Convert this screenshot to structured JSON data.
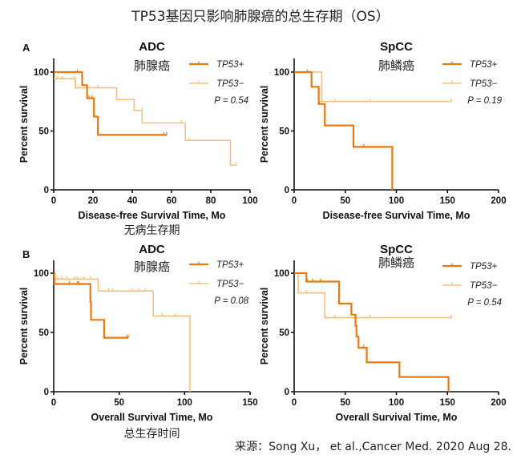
{
  "title": "TP53基因只影响肺腺癌的总生存期（OS）",
  "source": "来源：Song Xu， et al.,Cancer Med. 2020 Aug 28.",
  "colors": {
    "tp53_pos": "#E8790F",
    "tp53_neg": "#F6BE7E"
  },
  "chart_data": [
    {
      "panel": "A",
      "type": "line",
      "step": true,
      "title": "ADC",
      "subtitle": "肺腺癌",
      "xlabel": "Disease-free Survival Time, Mo",
      "xlabel_cn": "无病生存期",
      "ylabel": "Percent survival",
      "xlim": [
        0,
        100
      ],
      "ylim": [
        0,
        100
      ],
      "xticks": [
        0,
        20,
        40,
        60,
        80,
        100
      ],
      "yticks": [
        0,
        50,
        100
      ],
      "legend_position": "top-right",
      "p_value": "P = 0.54",
      "series": [
        {
          "name": "TP53+",
          "steps": [
            [
              0,
              100
            ],
            [
              14.5,
              88.9
            ],
            [
              17,
              77.8
            ],
            [
              20.5,
              62.2
            ],
            [
              22.5,
              46.7
            ]
          ],
          "end": 57.5,
          "censored": [
            [
              12,
              100
            ],
            [
              18,
              77.8
            ],
            [
              19.5,
              77.8
            ],
            [
              56,
              46.7
            ],
            [
              57.5,
              46.7
            ]
          ]
        },
        {
          "name": "TP53−",
          "steps": [
            [
              0,
              94.4
            ],
            [
              11,
              86.7
            ],
            [
              32,
              76.7
            ],
            [
              41,
              67.5
            ],
            [
              45,
              56.8
            ],
            [
              67,
              42
            ],
            [
              90,
              21
            ]
          ],
          "end": 93,
          "censored": [
            [
              2,
              94.4
            ],
            [
              4.5,
              94.4
            ],
            [
              10.5,
              94.4
            ],
            [
              22.5,
              86.7
            ],
            [
              45,
              67.5
            ],
            [
              65,
              56.8
            ],
            [
              69,
              42
            ],
            [
              93,
              21
            ]
          ]
        }
      ]
    },
    {
      "panel": "",
      "type": "line",
      "step": true,
      "title": "SpCC",
      "subtitle": "肺鳞癌",
      "xlabel": "Disease-free Survival Time, Mo",
      "xlabel_cn": "",
      "ylabel": "Percent survival",
      "xlim": [
        0,
        200
      ],
      "ylim": [
        0,
        100
      ],
      "xticks": [
        0,
        50,
        100,
        150,
        200
      ],
      "yticks": [
        0,
        50,
        100
      ],
      "legend_position": "top-right",
      "p_value": "P = 0.19",
      "series": [
        {
          "name": "TP53+",
          "steps": [
            [
              0,
              100
            ],
            [
              17,
              87.5
            ],
            [
              24,
              72.9
            ],
            [
              30,
              54.7
            ],
            [
              58,
              36.5
            ],
            [
              96,
              0
            ]
          ],
          "end": 96,
          "censored": [
            [
              13,
              100
            ],
            [
              17.5,
              87.5
            ],
            [
              25,
              72.9
            ],
            [
              68,
              36.5
            ]
          ]
        },
        {
          "name": "TP53−",
          "steps": [
            [
              0,
              100
            ],
            [
              27,
              75
            ]
          ],
          "end": 154,
          "censored": [
            [
              40,
              75
            ],
            [
              74,
              75
            ],
            [
              154,
              75
            ]
          ]
        }
      ]
    },
    {
      "panel": "B",
      "type": "line",
      "step": true,
      "title": "ADC",
      "subtitle": "肺腺癌",
      "xlabel": "Overall Survival Time, Mo",
      "xlabel_cn": "总生存时间",
      "ylabel": "Percent survival",
      "xlim": [
        0,
        150
      ],
      "ylim": [
        0,
        100
      ],
      "xticks": [
        0,
        50,
        100,
        150
      ],
      "yticks": [
        0,
        50,
        100
      ],
      "legend_position": "top-right",
      "p_value": "P = 0.08",
      "series": [
        {
          "name": "TP53+",
          "steps": [
            [
              0,
              100
            ],
            [
              0.5,
              90.9
            ],
            [
              28,
              75.8
            ],
            [
              28.5,
              60.6
            ],
            [
              38.5,
              45.5
            ]
          ],
          "end": 57,
          "censored": [
            [
              12,
              90.9
            ],
            [
              18,
              90.9
            ],
            [
              19,
              90.9
            ],
            [
              56,
              45.5
            ],
            [
              57,
              45.5
            ]
          ]
        },
        {
          "name": "TP53−",
          "steps": [
            [
              0,
              100
            ],
            [
              0.5,
              95
            ],
            [
              34,
              85
            ],
            [
              76,
              63.8
            ],
            [
              104,
              0
            ]
          ],
          "end": 104,
          "censored": [
            [
              3,
              95
            ],
            [
              6,
              95
            ],
            [
              10,
              95
            ],
            [
              16,
              95
            ],
            [
              18,
              95
            ],
            [
              23,
              95
            ],
            [
              28,
              95
            ],
            [
              42,
              85
            ],
            [
              45,
              85
            ],
            [
              60,
              85
            ],
            [
              65,
              85
            ],
            [
              70,
              85
            ],
            [
              83,
              63.8
            ],
            [
              93,
              63.8
            ]
          ]
        }
      ]
    },
    {
      "panel": "",
      "type": "line",
      "step": true,
      "title": "SpCC",
      "subtitle": "肺鳞癌",
      "xlabel": "Overall Survival Time, Mo",
      "xlabel_cn": "",
      "ylabel": "Percent survival",
      "xlim": [
        0,
        200
      ],
      "ylim": [
        0,
        100
      ],
      "xticks": [
        0,
        50,
        100,
        150,
        200
      ],
      "yticks": [
        0,
        50,
        100
      ],
      "legend_position": "top-right",
      "p_value": "P = 0.54",
      "series": [
        {
          "name": "TP53+",
          "steps": [
            [
              0,
              100
            ],
            [
              12,
              92.9
            ],
            [
              44,
              74.3
            ],
            [
              56,
              65
            ],
            [
              60,
              55.7
            ],
            [
              61,
              46.4
            ],
            [
              63,
              37.1
            ],
            [
              71,
              24.8
            ],
            [
              103,
              12.4
            ],
            [
              151,
              0
            ]
          ],
          "end": 151,
          "censored": [
            [
              13,
              92.9
            ],
            [
              18,
              92.9
            ],
            [
              26,
              92.9
            ],
            [
              68,
              37.1
            ]
          ]
        },
        {
          "name": "TP53−",
          "steps": [
            [
              0,
              100
            ],
            [
              4,
              83.3
            ],
            [
              30,
              62.5
            ]
          ],
          "end": 154,
          "censored": [
            [
              12,
              83.3
            ],
            [
              40,
              62.5
            ],
            [
              74,
              62.5
            ],
            [
              154,
              62.5
            ]
          ]
        }
      ]
    }
  ]
}
